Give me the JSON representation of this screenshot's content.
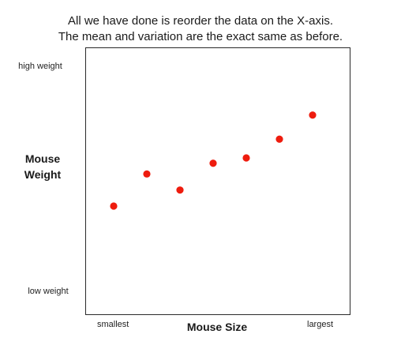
{
  "title": {
    "line1": "All we have done is reorder the data on the X-axis.",
    "line2": "The mean and variation are the exact same as before."
  },
  "axes": {
    "y_title_line1": "Mouse",
    "y_title_line2": "Weight",
    "y_top_label": "high weight",
    "y_bottom_label": "low weight",
    "x_title": "Mouse Size",
    "x_left_label": "smallest",
    "x_right_label": "largest"
  },
  "chart_data": {
    "type": "scatter",
    "title": "All we have done is reorder the data on the X-axis. The mean and variation are the exact same as before.",
    "xlabel": "Mouse Size",
    "ylabel": "Mouse Weight",
    "x_tick_labels": [
      "smallest",
      "largest"
    ],
    "y_tick_labels": [
      "low weight",
      "high weight"
    ],
    "xlim": [
      0,
      10
    ],
    "ylim": [
      0,
      10
    ],
    "grid": false,
    "point_color": "#ee1c0e",
    "x": [
      1,
      2,
      3,
      4,
      5,
      6,
      7
    ],
    "y": [
      4.1,
      5.3,
      4.7,
      5.7,
      5.9,
      6.6,
      7.5
    ]
  }
}
